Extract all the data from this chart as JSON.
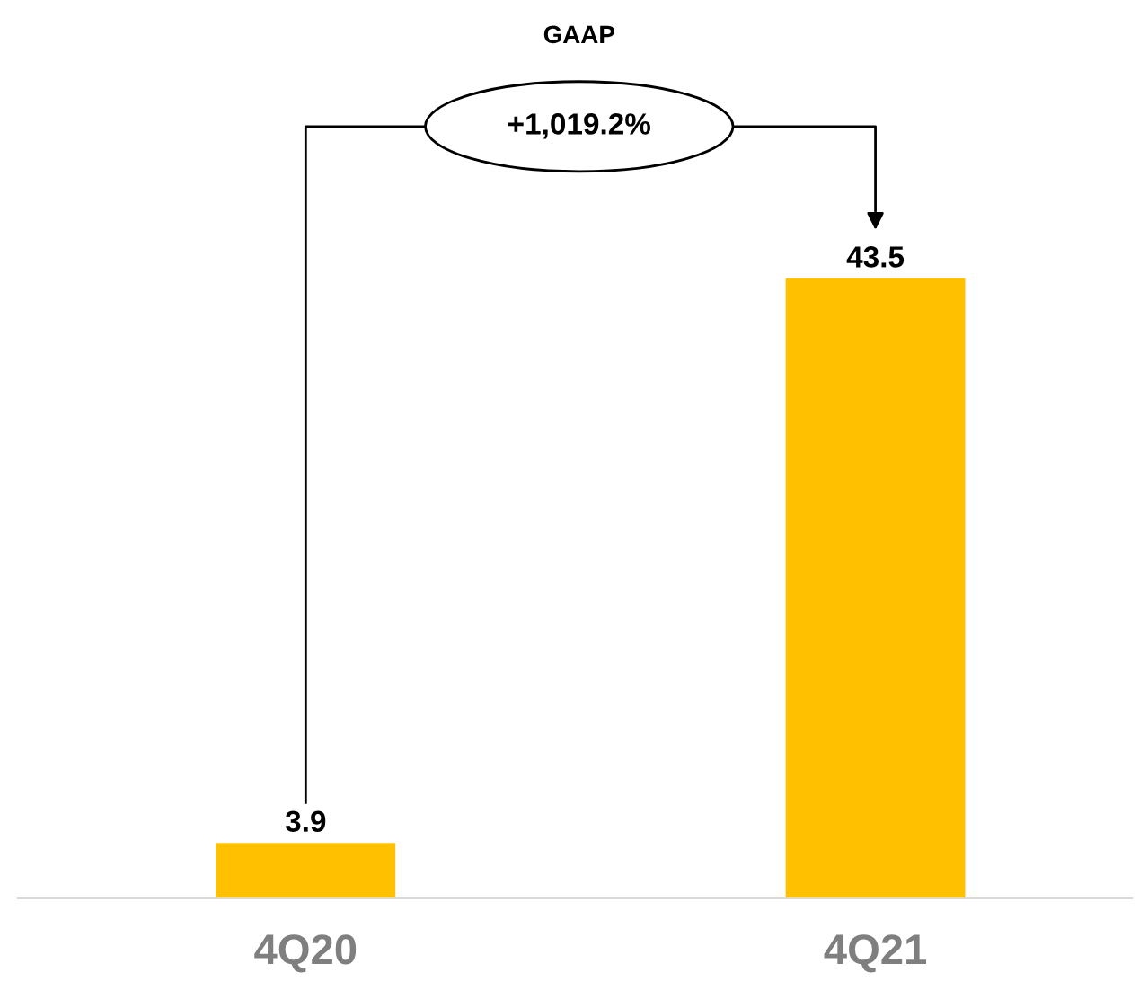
{
  "chart_data": {
    "type": "bar",
    "categories": [
      "4Q20",
      "4Q21"
    ],
    "values": [
      3.9,
      43.5
    ],
    "color": "#ffc000",
    "data_labels": true,
    "grid": false,
    "legend": false,
    "annotations": [
      "GAAP",
      "+1,019.2%"
    ]
  }
}
